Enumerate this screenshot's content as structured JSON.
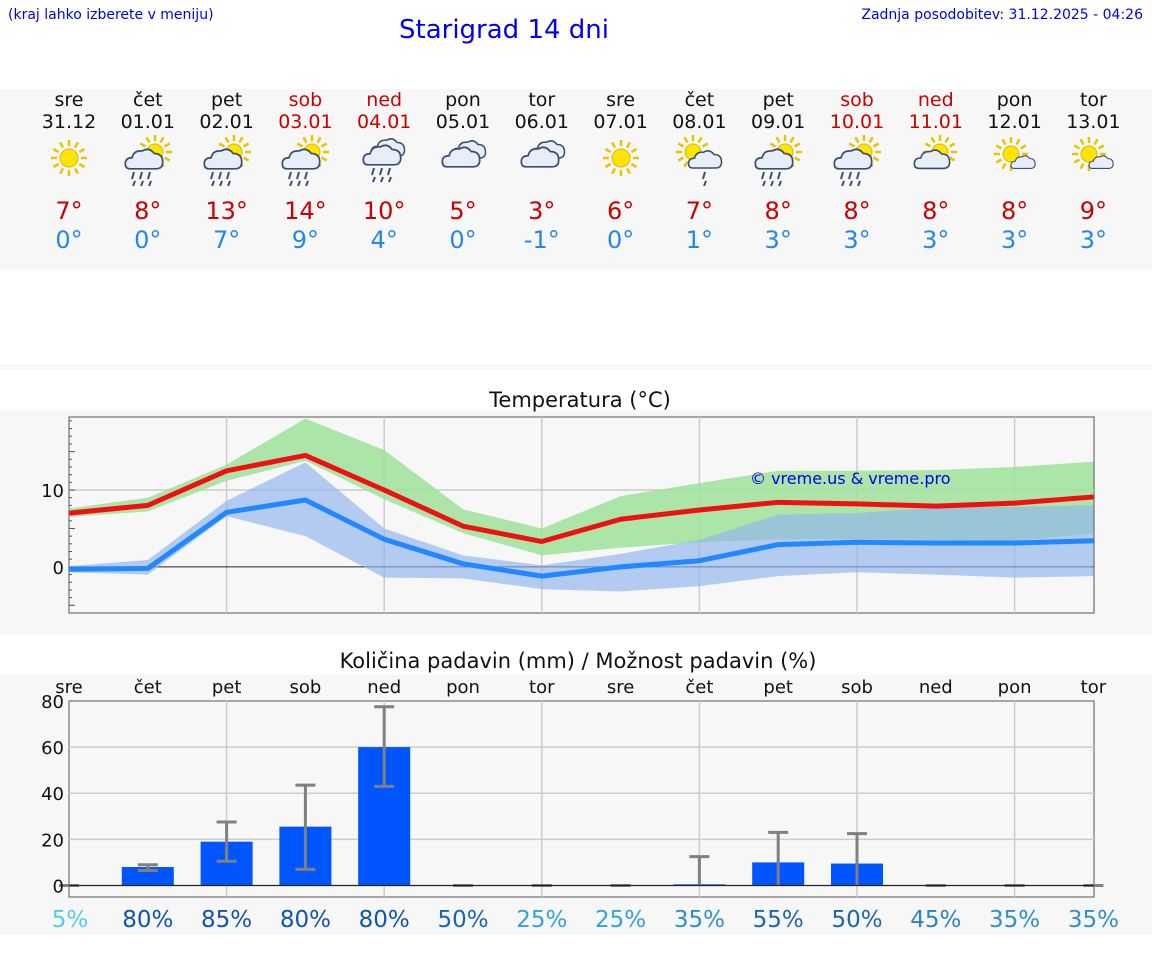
{
  "header": {
    "menu_hint": "(kraj lahko izberete v meniju)",
    "title": "Starigrad 14 dni",
    "last_update": "Zadnja posodobitev: 31.12.2025 - 04:26"
  },
  "colors": {
    "weekday": "#111111",
    "weekend": "#cc0000",
    "max_temp": "#cc0000",
    "min_temp": "#2288ee",
    "max_line": "#ee1111",
    "min_line": "#2288ff",
    "max_band": "#9ee29a",
    "min_band": "#8fb3ee",
    "bar": "#0055ff",
    "whisker": "#808080"
  },
  "days": [
    {
      "name": "sre",
      "date": "31.12",
      "weekend": false,
      "icon": "sun-icon",
      "tmax": "7°",
      "tmin": "0°"
    },
    {
      "name": "čet",
      "date": "01.01",
      "weekend": false,
      "icon": "sun-cloud-rain-icon",
      "tmax": "8°",
      "tmin": "0°"
    },
    {
      "name": "pet",
      "date": "02.01",
      "weekend": false,
      "icon": "sun-cloud-rain-icon",
      "tmax": "13°",
      "tmin": "7°"
    },
    {
      "name": "sob",
      "date": "03.01",
      "weekend": true,
      "icon": "sun-cloud-rain-icon",
      "tmax": "14°",
      "tmin": "9°"
    },
    {
      "name": "ned",
      "date": "04.01",
      "weekend": true,
      "icon": "cloud-rain-icon",
      "tmax": "10°",
      "tmin": "4°"
    },
    {
      "name": "pon",
      "date": "05.01",
      "weekend": false,
      "icon": "cloud-icon",
      "tmax": "5°",
      "tmin": "0°"
    },
    {
      "name": "tor",
      "date": "06.01",
      "weekend": false,
      "icon": "cloud-icon",
      "tmax": "3°",
      "tmin": "-1°"
    },
    {
      "name": "sre",
      "date": "07.01",
      "weekend": false,
      "icon": "sun-icon",
      "tmax": "6°",
      "tmin": "0°"
    },
    {
      "name": "čet",
      "date": "08.01",
      "weekend": false,
      "icon": "sun-cloud-light-rain-icon",
      "tmax": "7°",
      "tmin": "1°"
    },
    {
      "name": "pet",
      "date": "09.01",
      "weekend": false,
      "icon": "sun-cloud-rain-icon",
      "tmax": "8°",
      "tmin": "3°"
    },
    {
      "name": "sob",
      "date": "10.01",
      "weekend": true,
      "icon": "sun-cloud-rain-icon",
      "tmax": "8°",
      "tmin": "3°"
    },
    {
      "name": "ned",
      "date": "11.01",
      "weekend": true,
      "icon": "sun-cloud-icon",
      "tmax": "8°",
      "tmin": "3°"
    },
    {
      "name": "pon",
      "date": "12.01",
      "weekend": false,
      "icon": "sun-small-cloud-icon",
      "tmax": "8°",
      "tmin": "3°"
    },
    {
      "name": "tor",
      "date": "13.01",
      "weekend": false,
      "icon": "sun-small-cloud-icon",
      "tmax": "9°",
      "tmin": "3°"
    }
  ],
  "chart_data": [
    {
      "type": "line",
      "title": "Temperatura (°C)",
      "x": [
        1,
        2,
        3,
        4,
        5,
        6,
        7,
        8,
        9,
        10,
        11,
        12,
        13,
        14
      ],
      "yticks": [
        "0",
        "10"
      ],
      "ylim": [
        -6,
        19.5
      ],
      "watermark": "© vreme.us & vreme.pro",
      "series": [
        {
          "name": "max",
          "values": [
            7,
            8,
            12.5,
            14.5,
            10,
            5.3,
            3.3,
            6.2,
            7.4,
            8.4,
            8.2,
            7.9,
            8.3,
            9.1
          ]
        },
        {
          "name": "min",
          "values": [
            -0.3,
            -0.2,
            7.1,
            8.7,
            3.6,
            0.4,
            -1.2,
            0,
            0.8,
            2.9,
            3.2,
            3.1,
            3.1,
            3.4
          ]
        }
      ],
      "bands": [
        {
          "name": "max-range",
          "low": [
            6.5,
            7.2,
            11.2,
            13.8,
            8.8,
            4.4,
            1.5,
            2.5,
            3.2,
            3.6,
            3.6,
            3.5,
            3.4,
            4.3
          ],
          "high": [
            7.6,
            9,
            13.3,
            19.3,
            15.2,
            7.5,
            5,
            9.2,
            10.9,
            12.5,
            12.5,
            12.6,
            13,
            13.7
          ]
        },
        {
          "name": "min-range",
          "low": [
            -0.7,
            -1,
            6.6,
            4,
            -1.4,
            -1.5,
            -2.9,
            -3.2,
            -2.5,
            -1.2,
            -0.7,
            -1,
            -1.4,
            -1.2
          ],
          "high": [
            0.1,
            0.9,
            8.6,
            13.6,
            5,
            1.5,
            0.2,
            1.7,
            3.5,
            6.8,
            7,
            7.7,
            7.8,
            8
          ]
        }
      ]
    },
    {
      "type": "bar",
      "title": "Količina padavin (mm) / Možnost padavin (%)",
      "categories": [
        "sre",
        "čet",
        "pet",
        "sob",
        "ned",
        "pon",
        "tor",
        "sre",
        "čet",
        "pet",
        "sob",
        "ned",
        "pon",
        "tor"
      ],
      "values": [
        0,
        8,
        19,
        25.5,
        60,
        0,
        0,
        0,
        0.5,
        10,
        9.5,
        0,
        0,
        0
      ],
      "error_low": [
        0,
        6.5,
        10.5,
        7,
        43,
        0,
        0,
        0,
        0,
        0,
        0,
        0,
        0,
        0
      ],
      "error_high": [
        0,
        9,
        27.5,
        43.5,
        77.5,
        0,
        0,
        0,
        12.5,
        23,
        22.5,
        0,
        0,
        0
      ],
      "ylim": [
        -5,
        80
      ],
      "yticks": [
        "0",
        "20",
        "40",
        "60",
        "80"
      ],
      "chance": [
        {
          "label": "5%",
          "color": "#55ccee"
        },
        {
          "label": "80%",
          "color": "#1155aa"
        },
        {
          "label": "85%",
          "color": "#1155aa"
        },
        {
          "label": "80%",
          "color": "#1155aa"
        },
        {
          "label": "80%",
          "color": "#1155aa"
        },
        {
          "label": "50%",
          "color": "#1a66b3"
        },
        {
          "label": "25%",
          "color": "#33a3dd"
        },
        {
          "label": "25%",
          "color": "#33a3dd"
        },
        {
          "label": "35%",
          "color": "#2f8fcf"
        },
        {
          "label": "55%",
          "color": "#1a66b3"
        },
        {
          "label": "50%",
          "color": "#1a66b3"
        },
        {
          "label": "45%",
          "color": "#2a82c8"
        },
        {
          "label": "35%",
          "color": "#2f8fcf"
        },
        {
          "label": "35%",
          "color": "#2f8fcf"
        }
      ]
    }
  ]
}
